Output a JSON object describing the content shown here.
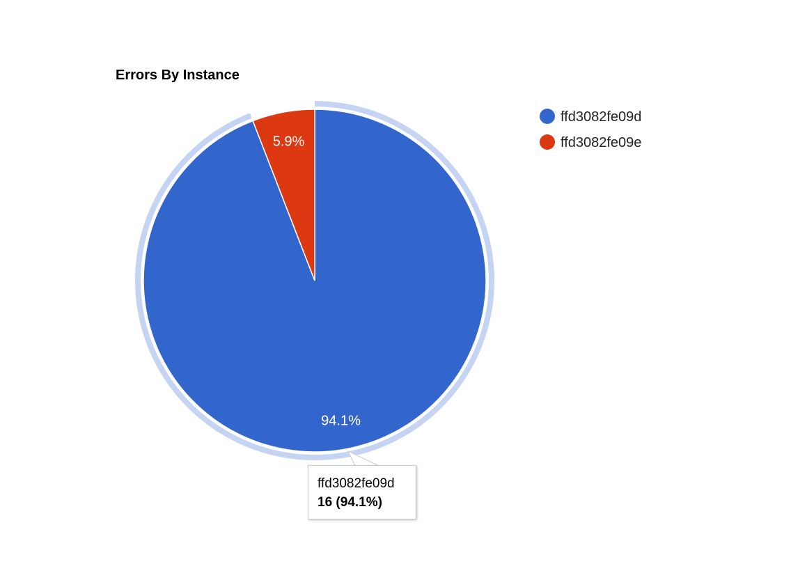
{
  "chart_data": {
    "type": "pie",
    "title": "Errors By Instance",
    "legend_position": "right",
    "categories": [
      "ffd3082fe09d",
      "ffd3082fe09e"
    ],
    "values": [
      16,
      1
    ],
    "slice_labels": [
      "94.1%",
      "5.9%"
    ],
    "colors": [
      "#3366cc",
      "#dc3912"
    ],
    "highlight_color": "#c5d4f2",
    "highlighted_slice": 0
  },
  "tooltip": {
    "name": "ffd3082fe09d",
    "value": "16 (94.1%)"
  }
}
